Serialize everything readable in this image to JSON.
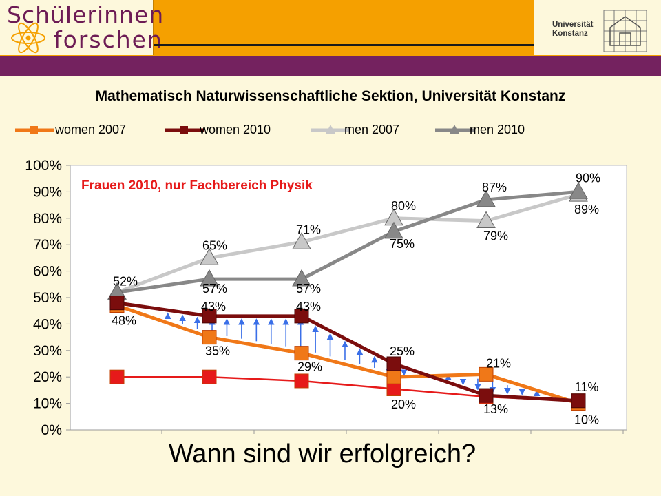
{
  "header": {
    "logo_line1": "Schülerinnen",
    "logo_line2": "forschen",
    "university_name": "Universität\nKonstanz"
  },
  "section_title": "Mathematisch Naturwissenschaftliche Sektion, Universität Konstanz",
  "bottom_title": "Wann sind wir erfolgreich?",
  "colors": {
    "header_orange": "#f5a000",
    "purple": "#74225f",
    "background": "#fdf8dc",
    "women_2007": "#f07818",
    "women_2010": "#7b0d0d",
    "men_2007": "#c8c8c8",
    "men_2010": "#888888",
    "physics": "#e61a1a",
    "arrows": "#3a6fe8"
  },
  "chart_data": {
    "type": "line",
    "x": [
      1,
      2,
      3,
      4,
      5,
      6
    ],
    "ylim": [
      0,
      100
    ],
    "yticks": [
      "0%",
      "10%",
      "20%",
      "30%",
      "40%",
      "50%",
      "60%",
      "70%",
      "80%",
      "90%",
      "100%"
    ],
    "grid": false,
    "legend_position": "top",
    "annotation": "Frauen 2010, nur Fachbereich Physik",
    "series": [
      {
        "name": "women 2007",
        "values": [
          47,
          35,
          29,
          20,
          21,
          10
        ],
        "labels": [
          "",
          "35%",
          "29%",
          "20%",
          "21%",
          "10%"
        ],
        "marker": "square",
        "color": "#f07818"
      },
      {
        "name": "women 2010",
        "values": [
          48,
          43,
          43,
          25,
          13,
          11
        ],
        "labels": [
          "48%",
          "43%",
          "43%",
          "25%",
          "13%",
          "11%"
        ],
        "marker": "square",
        "color": "#7b0d0d"
      },
      {
        "name": "men 2007",
        "values": [
          52,
          65,
          71,
          80,
          79,
          89
        ],
        "labels": [
          "52%",
          "65%",
          "71%",
          "80%",
          "79%",
          "89%"
        ],
        "marker": "triangle",
        "color": "#c8c8c8"
      },
      {
        "name": "men 2010",
        "values": [
          52,
          57,
          57,
          75,
          87,
          90
        ],
        "labels": [
          "",
          "57%",
          "57%",
          "75%",
          "87%",
          "90%"
        ],
        "marker": "triangle",
        "color": "#888888"
      },
      {
        "name": "",
        "values": [
          20,
          20,
          18.5,
          15.5,
          12.5,
          11
        ],
        "labels": [],
        "marker": "square",
        "color": "#e61a1a"
      }
    ]
  }
}
